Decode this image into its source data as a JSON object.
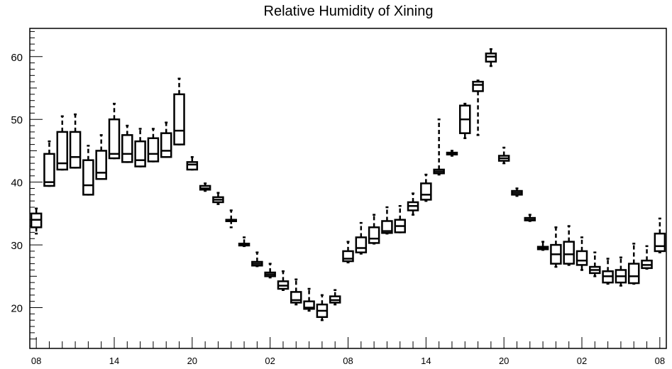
{
  "chart_data": {
    "type": "box",
    "title": "Relative Humidity of Xining",
    "xlabel": "",
    "ylabel": "",
    "ylim": [
      13.5,
      64.5
    ],
    "yticks": [
      20,
      30,
      40,
      50,
      60
    ],
    "x_tick_labels": [
      "08",
      "14",
      "20",
      "02",
      "08",
      "14",
      "20",
      "02",
      "08"
    ],
    "x_tick_hours": [
      0,
      6,
      12,
      18,
      24,
      30,
      36,
      42,
      48
    ],
    "x_range_hours": [
      -0.5,
      48.5
    ],
    "grid": false,
    "boxes": [
      {
        "t": 0,
        "low": 31.8,
        "q1": 32.8,
        "med": 34.0,
        "q3": 35.0,
        "high": 35.8
      },
      {
        "t": 1,
        "low": 39.4,
        "q1": 39.4,
        "med": 40.0,
        "q3": 44.5,
        "high": 46.5
      },
      {
        "t": 2,
        "low": 42.0,
        "q1": 42.0,
        "med": 43.0,
        "q3": 48.0,
        "high": 50.5
      },
      {
        "t": 3,
        "low": 42.3,
        "q1": 42.3,
        "med": 44.0,
        "q3": 48.0,
        "high": 50.8
      },
      {
        "t": 4,
        "low": 38.0,
        "q1": 38.0,
        "med": 39.5,
        "q3": 43.5,
        "high": 45.8
      },
      {
        "t": 5,
        "low": 40.5,
        "q1": 40.5,
        "med": 41.5,
        "q3": 45.0,
        "high": 47.5
      },
      {
        "t": 6,
        "low": 43.8,
        "q1": 43.8,
        "med": 44.5,
        "q3": 50.0,
        "high": 52.5
      },
      {
        "t": 7,
        "low": 43.2,
        "q1": 43.2,
        "med": 44.5,
        "q3": 47.5,
        "high": 49.0
      },
      {
        "t": 8,
        "low": 42.5,
        "q1": 42.5,
        "med": 43.5,
        "q3": 46.5,
        "high": 48.5
      },
      {
        "t": 9,
        "low": 43.3,
        "q1": 43.3,
        "med": 44.5,
        "q3": 47.0,
        "high": 48.5
      },
      {
        "t": 10,
        "low": 44.0,
        "q1": 44.0,
        "med": 45.0,
        "q3": 47.8,
        "high": 49.5
      },
      {
        "t": 11,
        "low": 46.0,
        "q1": 46.0,
        "med": 48.2,
        "q3": 54.0,
        "high": 56.5
      },
      {
        "t": 12,
        "low": 42.0,
        "q1": 42.0,
        "med": 42.8,
        "q3": 43.2,
        "high": 44.0
      },
      {
        "t": 13,
        "low": 38.6,
        "q1": 38.8,
        "med": 39.0,
        "q3": 39.4,
        "high": 39.8
      },
      {
        "t": 14,
        "low": 36.5,
        "q1": 36.8,
        "med": 37.2,
        "q3": 37.6,
        "high": 38.3
      },
      {
        "t": 15,
        "low": 32.8,
        "q1": 34.0,
        "med": 34.0,
        "q3": 34.0,
        "high": 35.5
      },
      {
        "t": 16,
        "low": 29.8,
        "q1": 29.9,
        "med": 30.0,
        "q3": 30.2,
        "high": 31.2
      },
      {
        "t": 17,
        "low": 26.6,
        "q1": 26.7,
        "med": 27.0,
        "q3": 27.3,
        "high": 28.8
      },
      {
        "t": 18,
        "low": 24.8,
        "q1": 25.0,
        "med": 25.3,
        "q3": 25.6,
        "high": 27.0
      },
      {
        "t": 19,
        "low": 22.8,
        "q1": 23.0,
        "med": 23.5,
        "q3": 24.2,
        "high": 25.8
      },
      {
        "t": 20,
        "low": 20.5,
        "q1": 20.8,
        "med": 21.2,
        "q3": 22.5,
        "high": 24.5
      },
      {
        "t": 21,
        "low": 19.5,
        "q1": 19.8,
        "med": 20.0,
        "q3": 21.0,
        "high": 23.0
      },
      {
        "t": 22,
        "low": 18.0,
        "q1": 18.5,
        "med": 19.5,
        "q3": 20.5,
        "high": 22.0
      },
      {
        "t": 23,
        "low": 20.5,
        "q1": 20.8,
        "med": 21.2,
        "q3": 21.8,
        "high": 22.8
      },
      {
        "t": 24,
        "low": 27.2,
        "q1": 27.4,
        "med": 27.8,
        "q3": 29.0,
        "high": 30.5
      },
      {
        "t": 25,
        "low": 28.6,
        "q1": 28.8,
        "med": 29.5,
        "q3": 31.2,
        "high": 33.5
      },
      {
        "t": 26,
        "low": 30.2,
        "q1": 30.3,
        "med": 31.0,
        "q3": 32.8,
        "high": 34.8
      },
      {
        "t": 27,
        "low": 31.8,
        "q1": 31.9,
        "med": 32.2,
        "q3": 33.8,
        "high": 36.0
      },
      {
        "t": 28,
        "low": 32.0,
        "q1": 32.0,
        "med": 33.0,
        "q3": 34.0,
        "high": 36.2
      },
      {
        "t": 29,
        "low": 34.8,
        "q1": 35.5,
        "med": 36.2,
        "q3": 36.8,
        "high": 38.2
      },
      {
        "t": 30,
        "low": 37.0,
        "q1": 37.2,
        "med": 38.0,
        "q3": 39.8,
        "high": 41.2
      },
      {
        "t": 31,
        "low": 41.2,
        "q1": 41.4,
        "med": 41.7,
        "q3": 42.0,
        "high": 50.0
      },
      {
        "t": 32,
        "low": 44.2,
        "q1": 44.4,
        "med": 44.5,
        "q3": 44.7,
        "high": 45.0
      },
      {
        "t": 33,
        "low": 47.0,
        "q1": 47.8,
        "med": 50.0,
        "q3": 52.2,
        "high": 52.5
      },
      {
        "t": 34,
        "low": 47.5,
        "q1": 54.5,
        "med": 55.5,
        "q3": 56.0,
        "high": 56.2
      },
      {
        "t": 35,
        "low": 58.5,
        "q1": 59.2,
        "med": 60.0,
        "q3": 60.5,
        "high": 61.2
      },
      {
        "t": 36,
        "low": 43.0,
        "q1": 43.4,
        "med": 43.8,
        "q3": 44.2,
        "high": 45.5
      },
      {
        "t": 37,
        "low": 37.8,
        "q1": 38.0,
        "med": 38.3,
        "q3": 38.6,
        "high": 39.0
      },
      {
        "t": 38,
        "low": 33.8,
        "q1": 33.9,
        "med": 34.0,
        "q3": 34.3,
        "high": 34.8
      },
      {
        "t": 39,
        "low": 29.2,
        "q1": 29.3,
        "med": 29.5,
        "q3": 29.7,
        "high": 30.5
      },
      {
        "t": 40,
        "low": 26.5,
        "q1": 27.0,
        "med": 28.5,
        "q3": 30.0,
        "high": 32.8
      },
      {
        "t": 41,
        "low": 26.8,
        "q1": 27.0,
        "med": 28.5,
        "q3": 30.5,
        "high": 33.0
      },
      {
        "t": 42,
        "low": 26.0,
        "q1": 26.8,
        "med": 27.5,
        "q3": 29.0,
        "high": 31.2
      },
      {
        "t": 43,
        "low": 25.0,
        "q1": 25.5,
        "med": 26.0,
        "q3": 26.5,
        "high": 28.8
      },
      {
        "t": 44,
        "low": 23.8,
        "q1": 24.0,
        "med": 25.0,
        "q3": 25.8,
        "high": 27.8
      },
      {
        "t": 45,
        "low": 23.5,
        "q1": 24.0,
        "med": 25.0,
        "q3": 26.0,
        "high": 28.0
      },
      {
        "t": 46,
        "low": 23.8,
        "q1": 23.9,
        "med": 25.0,
        "q3": 27.0,
        "high": 30.2
      },
      {
        "t": 47,
        "low": 26.2,
        "q1": 26.3,
        "med": 26.8,
        "q3": 27.5,
        "high": 29.8
      },
      {
        "t": 48,
        "low": 28.8,
        "q1": 29.0,
        "med": 29.8,
        "q3": 31.8,
        "high": 34.2
      }
    ]
  }
}
